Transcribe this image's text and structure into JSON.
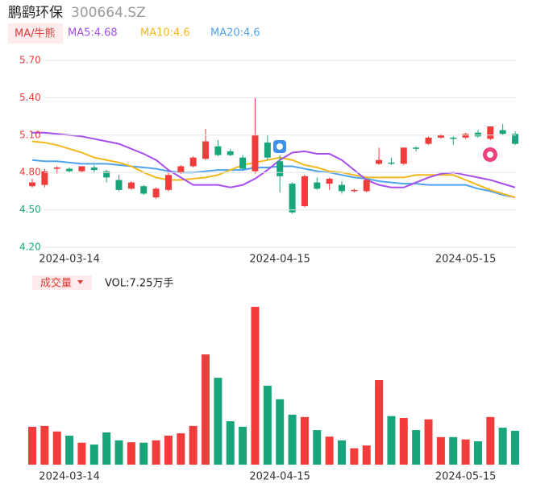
{
  "chart_data": [
    {
      "type": "candlestick",
      "title": "鹏鹞环保",
      "subtitle": "300664.SZ",
      "legend_title": "MA/牛熊",
      "categories": [
        null,
        null,
        null,
        "2024-03-14",
        null,
        null,
        null,
        null,
        null,
        null,
        null,
        null,
        null,
        null,
        null,
        null,
        null,
        null,
        null,
        null,
        "2024-04-15",
        null,
        null,
        null,
        null,
        null,
        null,
        null,
        null,
        null,
        null,
        null,
        null,
        null,
        null,
        "2024-05-15",
        null,
        null,
        null,
        null
      ],
      "open": [
        4.69,
        4.7,
        4.83,
        4.83,
        4.81,
        4.84,
        4.81,
        4.74,
        4.67,
        4.69,
        4.6,
        4.66,
        4.8,
        4.85,
        4.91,
        5.01,
        4.97,
        4.92,
        4.81,
        5.04,
        4.89,
        4.71,
        4.53,
        4.72,
        4.71,
        4.7,
        4.65,
        4.65,
        4.87,
        4.88,
        4.87,
        5.0,
        5.03,
        5.08,
        5.08,
        5.08,
        5.12,
        5.07,
        5.14,
        5.11
      ],
      "close": [
        4.72,
        4.81,
        4.84,
        4.81,
        4.85,
        4.82,
        4.76,
        4.66,
        4.72,
        4.63,
        4.67,
        4.78,
        4.85,
        4.92,
        5.05,
        4.94,
        4.94,
        4.83,
        5.1,
        4.92,
        4.77,
        4.48,
        4.77,
        4.67,
        4.75,
        4.65,
        4.66,
        4.74,
        4.9,
        4.87,
        5.0,
        4.99,
        5.08,
        5.1,
        5.07,
        5.11,
        5.09,
        5.17,
        5.11,
        5.03
      ],
      "high": [
        4.75,
        4.83,
        4.85,
        4.84,
        4.85,
        4.86,
        4.82,
        4.78,
        4.73,
        4.7,
        4.68,
        4.8,
        4.86,
        4.93,
        5.15,
        5.06,
        4.99,
        4.94,
        5.4,
        5.1,
        4.94,
        4.72,
        4.78,
        4.76,
        4.76,
        4.73,
        4.67,
        4.75,
        5.0,
        4.92,
        5.0,
        5.01,
        5.09,
        5.11,
        5.09,
        5.12,
        5.14,
        5.17,
        5.19,
        5.13
      ],
      "low": [
        4.68,
        4.68,
        4.79,
        4.8,
        4.8,
        4.8,
        4.72,
        4.65,
        4.66,
        4.62,
        4.59,
        4.65,
        4.79,
        4.84,
        4.9,
        4.93,
        4.93,
        4.82,
        4.79,
        4.9,
        4.64,
        4.47,
        4.52,
        4.66,
        4.66,
        4.63,
        4.64,
        4.64,
        4.86,
        4.86,
        4.86,
        4.97,
        5.02,
        5.07,
        5.02,
        5.07,
        5.08,
        5.06,
        5.1,
        5.02
      ],
      "up_color": "#f23c3c",
      "down_color": "#18a57c",
      "lines": [
        {
          "name": "MA5:4.68",
          "color": "#a64ef0",
          "values": [
            5.12,
            5.12,
            5.11,
            5.1,
            5.09,
            5.07,
            5.05,
            5.03,
            4.99,
            4.95,
            4.9,
            4.82,
            4.76,
            4.7,
            4.7,
            4.7,
            4.68,
            4.7,
            4.75,
            4.82,
            4.9,
            4.96,
            4.97,
            4.95,
            4.95,
            4.9,
            4.82,
            4.74,
            4.7,
            4.68,
            4.68,
            4.72,
            4.76,
            4.79,
            4.8,
            4.78,
            4.76,
            4.74,
            4.71,
            4.68
          ]
        },
        {
          "name": "MA10:4.6",
          "color": "#f2b81c",
          "values": [
            5.05,
            5.04,
            5.02,
            4.99,
            4.96,
            4.92,
            4.9,
            4.88,
            4.85,
            4.8,
            4.76,
            4.74,
            4.74,
            4.75,
            4.76,
            4.78,
            4.82,
            4.86,
            4.88,
            4.9,
            4.92,
            4.9,
            4.86,
            4.84,
            4.81,
            4.8,
            4.78,
            4.76,
            4.76,
            4.76,
            4.76,
            4.78,
            4.78,
            4.78,
            4.78,
            4.74,
            4.7,
            4.66,
            4.63,
            4.6
          ]
        },
        {
          "name": "MA20:4.6",
          "color": "#4ea3f0",
          "values": [
            4.9,
            4.89,
            4.89,
            4.88,
            4.87,
            4.87,
            4.87,
            4.86,
            4.85,
            4.84,
            4.83,
            4.81,
            4.8,
            4.8,
            4.81,
            4.82,
            4.82,
            4.82,
            4.84,
            4.84,
            4.85,
            4.85,
            4.83,
            4.81,
            4.8,
            4.78,
            4.76,
            4.75,
            4.73,
            4.72,
            4.71,
            4.71,
            4.7,
            4.7,
            4.7,
            4.7,
            4.67,
            4.65,
            4.62,
            4.6
          ]
        }
      ],
      "ylim": [
        4.2,
        5.7
      ],
      "yticks": [
        {
          "value": 5.7,
          "label": "5.70"
        },
        {
          "value": 5.4,
          "label": "5.40"
        },
        {
          "value": 5.1,
          "label": "5.10"
        },
        {
          "value": 4.8,
          "label": "4.80"
        },
        {
          "value": 4.5,
          "label": "4.50"
        },
        {
          "value": 4.2,
          "label": "4.20"
        }
      ],
      "ytick_colors": [
        "#f23c3c",
        "#f23c3c",
        "#f23c3c",
        "#f23c3c",
        "#18a57c",
        "#18a57c"
      ],
      "grid": true
    },
    {
      "type": "bar",
      "title": "成交量",
      "legend": "VOL:7.25万手",
      "categories": [
        null,
        null,
        null,
        "2024-03-14",
        null,
        null,
        null,
        null,
        null,
        null,
        null,
        null,
        null,
        null,
        null,
        null,
        null,
        null,
        null,
        null,
        "2024-04-15",
        null,
        null,
        null,
        null,
        null,
        null,
        null,
        null,
        null,
        null,
        null,
        null,
        null,
        null,
        "2024-05-15",
        null,
        null,
        null,
        null
      ],
      "values": [
        8.1,
        8.3,
        7.1,
        6.2,
        4.7,
        4.3,
        6.9,
        5.2,
        4.8,
        4.7,
        5.2,
        6.2,
        6.7,
        8.3,
        23.6,
        18.6,
        9.3,
        8.1,
        33.8,
        16.9,
        14.0,
        10.7,
        10.2,
        7.4,
        6.0,
        5.2,
        3.5,
        4.1,
        18.1,
        10.4,
        10.0,
        7.4,
        9.7,
        5.9,
        5.9,
        5.4,
        5.0,
        10.2,
        7.9,
        7.25
      ],
      "ylim": [
        0,
        35
      ]
    }
  ]
}
